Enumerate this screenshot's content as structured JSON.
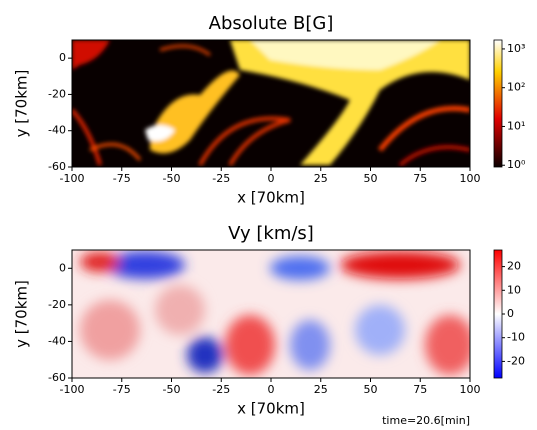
{
  "chart_data": [
    {
      "type": "heatmap",
      "title": "Absolute B[G]",
      "xlabel": "x [70km]",
      "ylabel": "y [70km]",
      "xlim": [
        -100,
        100
      ],
      "ylim": [
        -60,
        10
      ],
      "xticks": [
        -100,
        -75,
        -50,
        -25,
        0,
        25,
        50,
        75,
        100
      ],
      "yticks": [
        -60,
        -40,
        -20,
        0
      ],
      "colorbar": {
        "colormap": "hot",
        "log": true,
        "lim": [
          0.9,
          1700
        ],
        "ticks": [
          {
            "value": 1,
            "label": "10⁰"
          },
          {
            "value": 10,
            "label": "10¹"
          },
          {
            "value": 100,
            "label": "10²"
          },
          {
            "value": 1000,
            "label": "10³"
          }
        ]
      }
    },
    {
      "type": "heatmap",
      "title": "Vy [km/s]",
      "xlabel": "x [70km]",
      "ylabel": "y [70km]",
      "xlim": [
        -100,
        100
      ],
      "ylim": [
        -60,
        10
      ],
      "xticks": [
        -100,
        -75,
        -50,
        -25,
        0,
        25,
        50,
        75,
        100
      ],
      "yticks": [
        -60,
        -40,
        -20,
        0
      ],
      "colorbar": {
        "colormap": "bwr",
        "log": false,
        "lim": [
          -27,
          27
        ],
        "ticks": [
          -20,
          -10,
          0,
          10,
          20
        ]
      },
      "annotation": "time=20.6[min]"
    }
  ]
}
